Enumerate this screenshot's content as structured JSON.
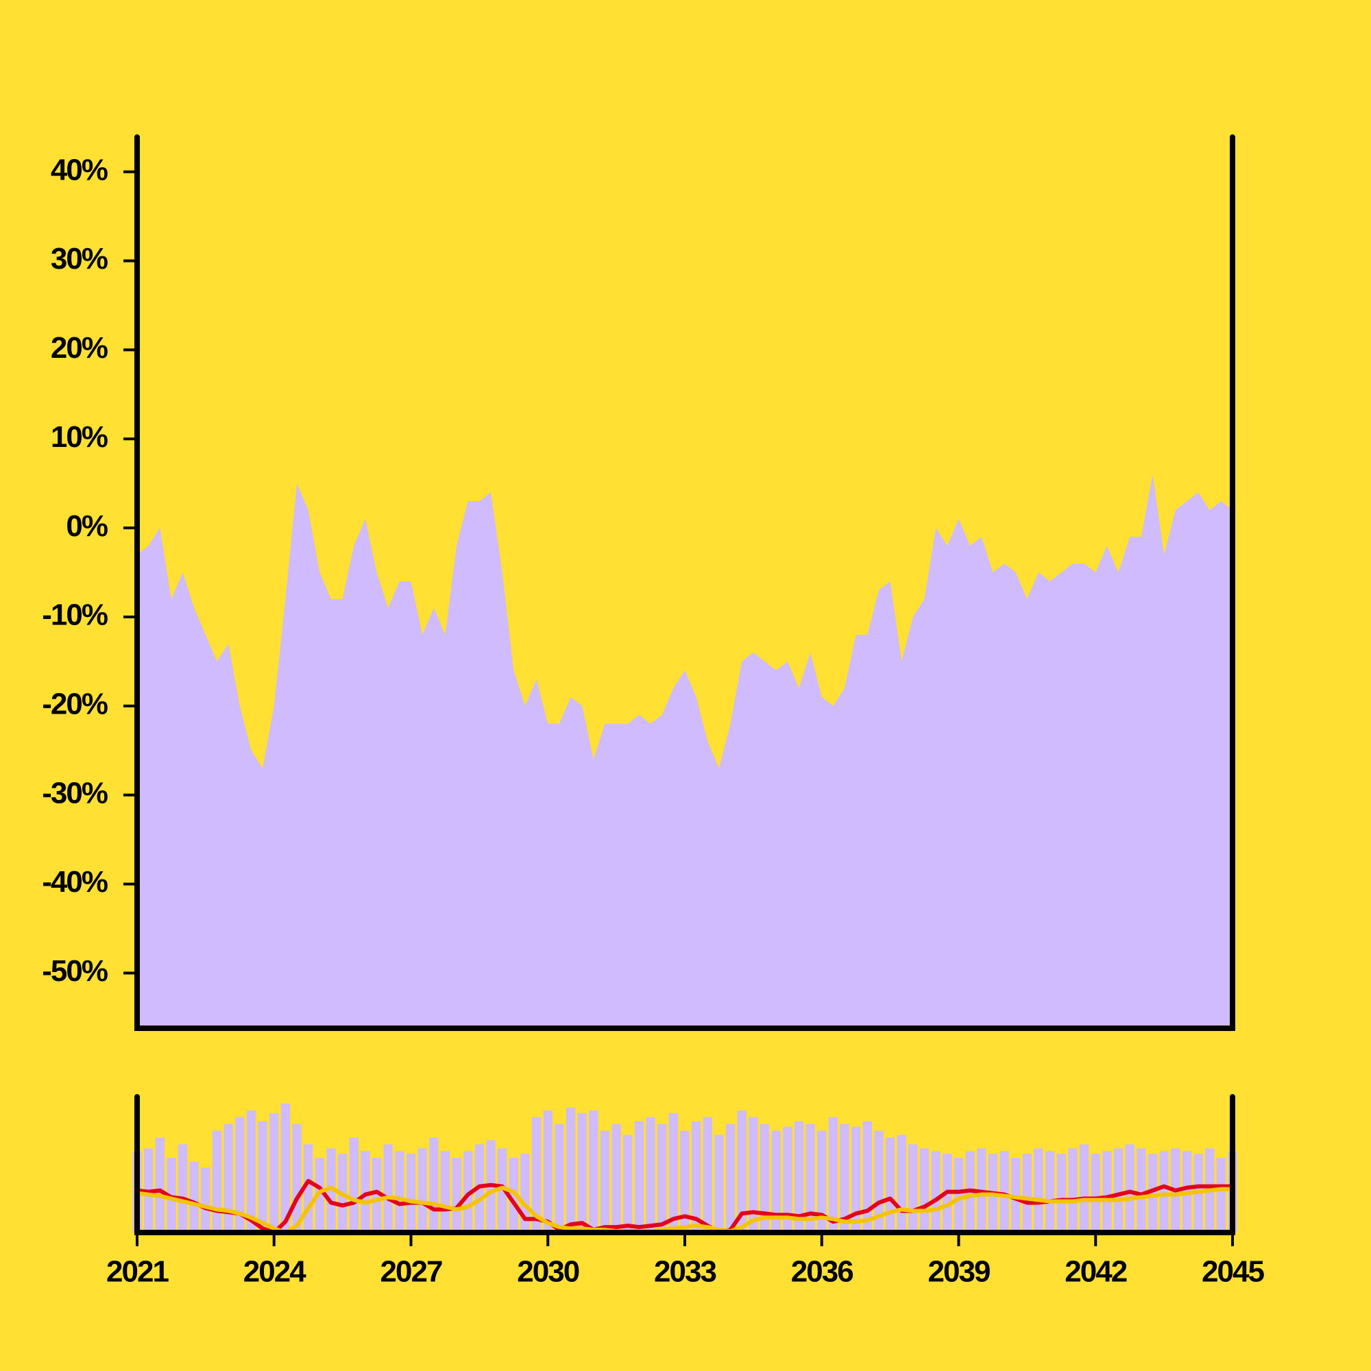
{
  "chart_data": [
    {
      "type": "area",
      "color": "#d0bbff",
      "x": [
        2021,
        2021.25,
        2021.5,
        2021.75,
        2022,
        2022.25,
        2022.5,
        2022.75,
        2023,
        2023.25,
        2023.5,
        2023.75,
        2024,
        2024.25,
        2024.5,
        2024.75,
        2025,
        2025.25,
        2025.5,
        2025.75,
        2026,
        2026.25,
        2026.5,
        2026.75,
        2027,
        2027.25,
        2027.5,
        2027.75,
        2028,
        2028.25,
        2028.5,
        2028.75,
        2029,
        2029.25,
        2029.5,
        2029.75,
        2030,
        2030.25,
        2030.5,
        2030.75,
        2031,
        2031.25,
        2031.5,
        2031.75,
        2032,
        2032.25,
        2032.5,
        2032.75,
        2033,
        2033.25,
        2033.5,
        2033.75,
        2034,
        2034.25,
        2034.5,
        2034.75,
        2035,
        2035.25,
        2035.5,
        2035.75,
        2036,
        2036.25,
        2036.5,
        2036.75,
        2037,
        2037.25,
        2037.5,
        2037.75,
        2038,
        2038.25,
        2038.5,
        2038.75,
        2039,
        2039.25,
        2039.5,
        2039.75,
        2040,
        2040.25,
        2040.5,
        2040.75,
        2041,
        2041.25,
        2041.5,
        2041.75,
        2042,
        2042.25,
        2042.5,
        2042.75,
        2043,
        2043.25,
        2043.5,
        2043.75,
        2044,
        2044.25,
        2044.5,
        2044.75,
        2045
      ],
      "values": [
        -3,
        -2,
        0,
        -8,
        -5,
        -9,
        -12,
        -15,
        -13,
        -20,
        -25,
        -27,
        -20,
        -8,
        5,
        2,
        -5,
        -8,
        -8,
        -2,
        1,
        -5,
        -9,
        -6,
        -6,
        -12,
        -9,
        -12,
        -2,
        3,
        3,
        4,
        -5,
        -16,
        -20,
        -17,
        -22,
        -22,
        -19,
        -20,
        -26,
        -22,
        -22,
        -22,
        -21,
        -22,
        -21,
        -18,
        -16,
        -19,
        -24,
        -27,
        -22,
        -15,
        -14,
        -15,
        -16,
        -15,
        -18,
        -14,
        -19,
        -20,
        -18,
        -12,
        -12,
        -7,
        -6,
        -15,
        -10,
        -8,
        0,
        -2,
        1,
        -2,
        -1,
        -5,
        -4,
        -5,
        -8,
        -5,
        -6,
        -5,
        -4,
        -4,
        -5,
        -2,
        -5,
        -1,
        -1,
        6,
        -3,
        2,
        3,
        4,
        2,
        3,
        2
      ],
      "xlim": [
        2021,
        2045
      ],
      "ylim": [
        -56.2,
        43.9
      ],
      "yticks": [
        {
          "value": 40,
          "label": "40%"
        },
        {
          "value": 30,
          "label": "30%"
        },
        {
          "value": 20,
          "label": "20%"
        },
        {
          "value": 10,
          "label": "10%"
        },
        {
          "value": 0,
          "label": "0%"
        },
        {
          "value": -10,
          "label": "-10%"
        },
        {
          "value": -20,
          "label": "-20%"
        },
        {
          "value": -30,
          "label": "-30%"
        },
        {
          "value": -40,
          "label": "-40%"
        },
        {
          "value": -50,
          "label": "-50%"
        }
      ]
    },
    {
      "type": "combo",
      "x": [
        2021,
        2021.25,
        2021.5,
        2021.75,
        2022,
        2022.25,
        2022.5,
        2022.75,
        2023,
        2023.25,
        2023.5,
        2023.75,
        2024,
        2024.25,
        2024.5,
        2024.75,
        2025,
        2025.25,
        2025.5,
        2025.75,
        2026,
        2026.25,
        2026.5,
        2026.75,
        2027,
        2027.25,
        2027.5,
        2027.75,
        2028,
        2028.25,
        2028.5,
        2028.75,
        2029,
        2029.25,
        2029.5,
        2029.75,
        2030,
        2030.25,
        2030.5,
        2030.75,
        2031,
        2031.25,
        2031.5,
        2031.75,
        2032,
        2032.25,
        2032.5,
        2032.75,
        2033,
        2033.25,
        2033.5,
        2033.75,
        2034,
        2034.25,
        2034.5,
        2034.75,
        2035,
        2035.25,
        2035.5,
        2035.75,
        2036,
        2036.25,
        2036.5,
        2036.75,
        2037,
        2037.25,
        2037.5,
        2037.75,
        2038,
        2038.25,
        2038.5,
        2038.75,
        2039,
        2039.25,
        2039.5,
        2039.75,
        2040,
        2040.25,
        2040.5,
        2040.75,
        2041,
        2041.25,
        2041.5,
        2041.75,
        2042,
        2042.25,
        2042.5,
        2042.75,
        2043,
        2043.25,
        2043.5,
        2043.75,
        2044,
        2044.25,
        2044.5,
        2044.75,
        2045
      ],
      "xlim": [
        2021,
        2045
      ],
      "xticks": [
        2021,
        2024,
        2027,
        2030,
        2033,
        2036,
        2039,
        2042,
        2045
      ],
      "ylim": [
        0,
        100
      ],
      "series": [
        {
          "type": "bar",
          "color": "#d0bbff",
          "values": [
            60,
            62,
            70,
            55,
            65,
            52,
            48,
            75,
            80,
            85,
            90,
            82,
            88,
            95,
            80,
            65,
            55,
            62,
            58,
            70,
            60,
            55,
            65,
            60,
            58,
            62,
            70,
            60,
            55,
            60,
            65,
            68,
            62,
            55,
            58,
            85,
            90,
            80,
            92,
            88,
            90,
            75,
            80,
            72,
            82,
            85,
            80,
            88,
            75,
            82,
            85,
            72,
            80,
            90,
            85,
            80,
            75,
            78,
            82,
            80,
            75,
            85,
            80,
            78,
            82,
            75,
            70,
            72,
            65,
            62,
            60,
            58,
            55,
            60,
            62,
            58,
            60,
            55,
            58,
            62,
            60,
            58,
            62,
            65,
            58,
            60,
            62,
            65,
            62,
            58,
            60,
            62,
            60,
            58,
            62,
            55,
            60
          ]
        },
        {
          "type": "line",
          "color": "#e3001b",
          "values": [
            31,
            30,
            31,
            26,
            25,
            22,
            18,
            16,
            15,
            14,
            9,
            3,
            0,
            8,
            25,
            38,
            33,
            22,
            20,
            22,
            28,
            30,
            25,
            21,
            22,
            22,
            17,
            17,
            18,
            28,
            34,
            35,
            34,
            22,
            10,
            10,
            8,
            2,
            6,
            7,
            2,
            4,
            4,
            5,
            4,
            5,
            6,
            10,
            12,
            10,
            5,
            0,
            2,
            14,
            15,
            14,
            13,
            13,
            12,
            14,
            13,
            8,
            10,
            14,
            16,
            22,
            25,
            16,
            16,
            19,
            24,
            30,
            30,
            31,
            30,
            29,
            28,
            25,
            22,
            22,
            23,
            24,
            24,
            25,
            25,
            26,
            28,
            30,
            28,
            31,
            34,
            31,
            33,
            34,
            34,
            34,
            34
          ]
        },
        {
          "type": "line",
          "color": "#f5c400",
          "values": [
            29,
            28,
            27,
            25,
            23,
            21,
            19,
            17,
            16,
            14,
            11,
            7,
            3,
            0,
            5,
            18,
            30,
            33,
            28,
            24,
            22,
            24,
            26,
            25,
            23,
            22,
            21,
            19,
            17,
            19,
            24,
            30,
            33,
            30,
            20,
            12,
            7,
            4,
            3,
            3,
            2,
            2,
            1,
            1,
            1,
            1,
            2,
            3,
            4,
            5,
            4,
            2,
            1,
            4,
            9,
            11,
            11,
            11,
            10,
            10,
            11,
            10,
            8,
            8,
            9,
            12,
            15,
            17,
            16,
            16,
            17,
            20,
            25,
            27,
            28,
            28,
            27,
            26,
            25,
            24,
            23,
            23,
            23,
            24,
            24,
            24,
            24,
            25,
            26,
            27,
            28,
            28,
            29,
            30,
            31,
            32,
            32
          ]
        }
      ]
    }
  ]
}
